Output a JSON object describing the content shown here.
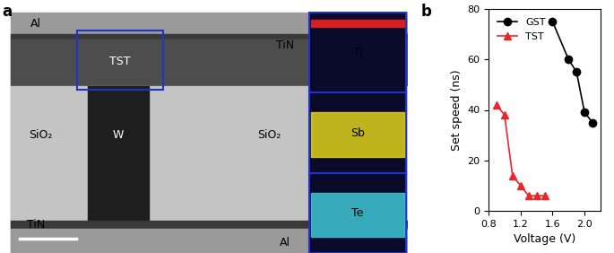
{
  "panel_labels": [
    "a",
    "b"
  ],
  "micrograph": {
    "labels": [
      "Al",
      "TiN",
      "TST",
      "SiO₂",
      "W",
      "SiO₂",
      "TiN",
      "Al"
    ],
    "maps": [
      {
        "element": "Ti",
        "color": "#d42020"
      },
      {
        "element": "Sb",
        "color": "#e0d21c"
      },
      {
        "element": "Te",
        "color": "#3fc6d6"
      }
    ]
  },
  "chart_data": {
    "type": "line",
    "xlabel": "Voltage (V)",
    "ylabel": "Set speed (ns)",
    "xlim": [
      0.8,
      2.2
    ],
    "xticks": [
      0.8,
      1.2,
      1.6,
      2.0
    ],
    "ylim": [
      0,
      80
    ],
    "yticks": [
      0,
      20,
      40,
      60,
      80
    ],
    "legend": "upper left",
    "series": [
      {
        "name": "GST",
        "color": "#000000",
        "marker": "o",
        "line_style": "solid",
        "x": [
          1.6,
          1.8,
          1.9,
          2.0,
          2.1
        ],
        "values": [
          75,
          60,
          55,
          39,
          35
        ]
      },
      {
        "name": "TST",
        "color": "#e8262b",
        "marker": "^",
        "line_style": "solid",
        "x": [
          0.9,
          1.0,
          1.1,
          1.2,
          1.3,
          1.4,
          1.5
        ],
        "values": [
          42,
          38,
          14,
          10,
          6,
          6,
          6
        ]
      }
    ]
  }
}
